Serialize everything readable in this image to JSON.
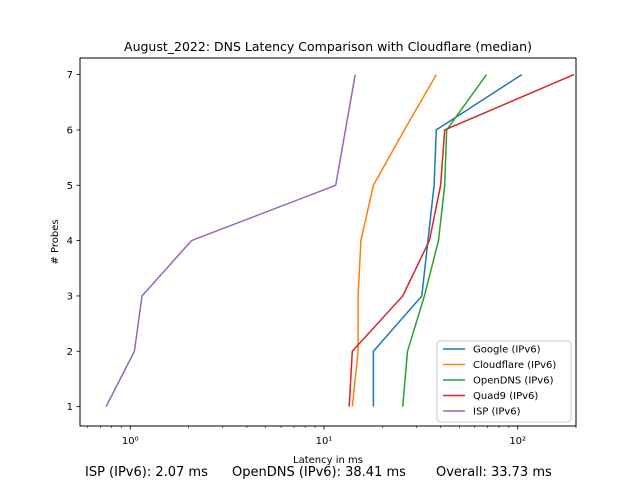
{
  "chart_data": {
    "type": "line",
    "title": "August_2022: DNS Latency Comparison with Cloudflare (median)",
    "xlabel": "Latency in ms",
    "ylabel": "# Probes",
    "xscale": "log",
    "xlim": [
      0.55,
      200
    ],
    "ylim": [
      0.65,
      7.3
    ],
    "xticks": [
      {
        "value": 1,
        "label": "10⁰"
      },
      {
        "value": 10,
        "label": "10¹"
      },
      {
        "value": 100,
        "label": "10²"
      }
    ],
    "yticks": [
      1,
      2,
      3,
      4,
      5,
      6,
      7
    ],
    "legend_position": "bottom-right",
    "series": [
      {
        "name": "Google (IPv6)",
        "color": "#1f77b4",
        "points": [
          [
            18,
            1
          ],
          [
            18,
            2
          ],
          [
            32,
            3
          ],
          [
            37,
            5
          ],
          [
            38,
            6
          ],
          [
            105,
            7
          ]
        ]
      },
      {
        "name": "Cloudflare (IPv6)",
        "color": "#ff7f0e",
        "points": [
          [
            14,
            1
          ],
          [
            15,
            2
          ],
          [
            15,
            3
          ],
          [
            15.5,
            4
          ],
          [
            18,
            5
          ],
          [
            26,
            6
          ],
          [
            38,
            7
          ]
        ]
      },
      {
        "name": "OpenDNS (IPv6)",
        "color": "#2ca02c",
        "points": [
          [
            25.5,
            1
          ],
          [
            27,
            2
          ],
          [
            33,
            3
          ],
          [
            39,
            4
          ],
          [
            42,
            5
          ],
          [
            43,
            6
          ],
          [
            69,
            7
          ]
        ]
      },
      {
        "name": "Quad9 (IPv6)",
        "color": "#d62728",
        "points": [
          [
            13.5,
            1
          ],
          [
            14,
            2
          ],
          [
            25.5,
            3
          ],
          [
            35,
            4
          ],
          [
            40,
            5
          ],
          [
            42,
            6
          ],
          [
            195,
            7
          ]
        ]
      },
      {
        "name": "ISP (IPv6)",
        "color": "#9467bd",
        "points": [
          [
            0.75,
            1
          ],
          [
            1.05,
            2
          ],
          [
            1.15,
            3
          ],
          [
            2.07,
            4
          ],
          [
            11.5,
            5
          ],
          [
            14.5,
            7
          ]
        ]
      }
    ]
  },
  "footer": {
    "isp": "ISP (IPv6): 2.07 ms",
    "opendns": "OpenDNS (IPv6): 38.41 ms",
    "overall": "Overall: 33.73 ms"
  }
}
